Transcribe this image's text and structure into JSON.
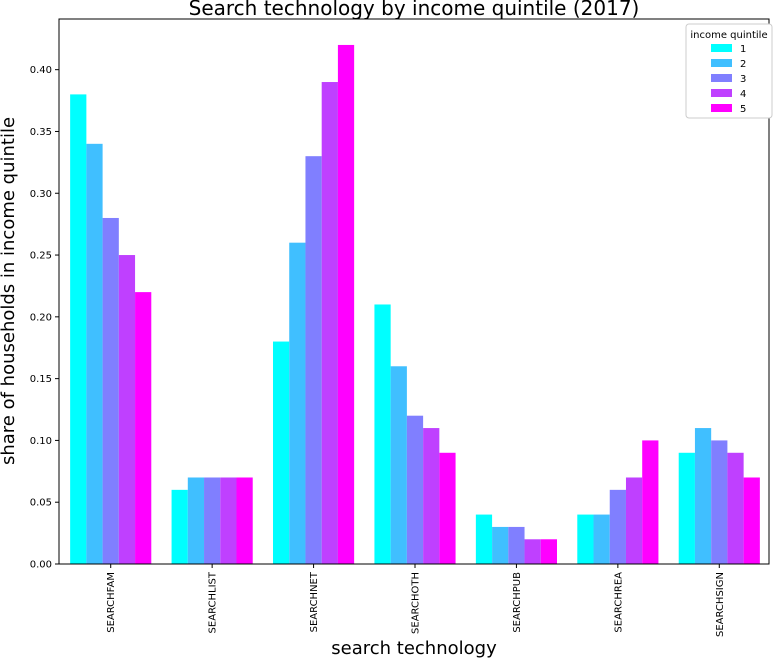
{
  "chart_data": {
    "type": "bar",
    "title": "Search technology by income quintile (2017)",
    "xlabel": "search technology",
    "ylabel": "share of households in income quintile",
    "categories": [
      "SEARCHFAM",
      "SEARCHLIST",
      "SEARCHNET",
      "SEARCHOTH",
      "SEARCHPUB",
      "SEARCHREA",
      "SEARCHSIGN"
    ],
    "series": [
      {
        "name": "1",
        "color": "#00ffff",
        "values": [
          0.38,
          0.06,
          0.18,
          0.21,
          0.04,
          0.04,
          0.09
        ]
      },
      {
        "name": "2",
        "color": "#40bfff",
        "values": [
          0.34,
          0.07,
          0.26,
          0.16,
          0.03,
          0.04,
          0.11
        ]
      },
      {
        "name": "3",
        "color": "#807fff",
        "values": [
          0.28,
          0.07,
          0.33,
          0.12,
          0.03,
          0.06,
          0.1
        ]
      },
      {
        "name": "4",
        "color": "#bf40ff",
        "values": [
          0.25,
          0.07,
          0.39,
          0.11,
          0.02,
          0.07,
          0.09
        ]
      },
      {
        "name": "5",
        "color": "#ff00ff",
        "values": [
          0.22,
          0.07,
          0.42,
          0.09,
          0.02,
          0.1,
          0.07
        ]
      }
    ],
    "yticks": [
      "0.00",
      "0.05",
      "0.10",
      "0.15",
      "0.20",
      "0.25",
      "0.30",
      "0.35",
      "0.40"
    ],
    "ylim": [
      0,
      0.441
    ],
    "legend": {
      "title": "income quintile",
      "placement": "top-right"
    },
    "grid": false
  }
}
